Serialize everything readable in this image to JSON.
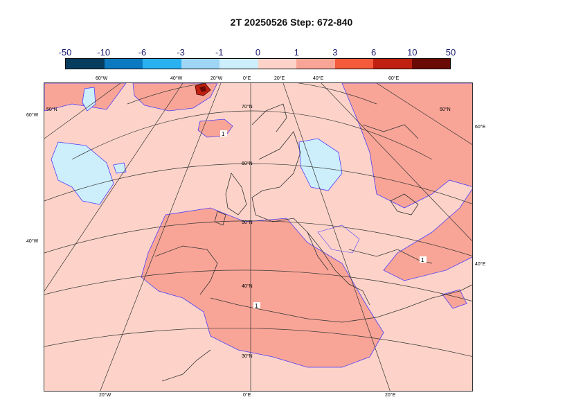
{
  "title": "2T 20250526 Step: 672-840",
  "legend": {
    "ticks": [
      "-50",
      "-10",
      "-6",
      "-3",
      "-1",
      "0",
      "1",
      "3",
      "6",
      "10",
      "50"
    ],
    "colors": [
      "#063d5e",
      "#0c7ac0",
      "#2ab1f0",
      "#9fd6f5",
      "#cdeefb",
      "#fdd3c9",
      "#f8a597",
      "#f55a3b",
      "#c0200f",
      "#6b0a04"
    ]
  },
  "map": {
    "top_lon_labels": [
      "60°W",
      "40°W",
      "20°W",
      "0°E",
      "20°E",
      "40°E",
      "60°E"
    ],
    "bottom_lon_labels": [
      "20°W",
      "0°E",
      "20°E"
    ],
    "left_labels": [
      "60°W",
      "40°W"
    ],
    "right_labels": [
      "60°E",
      "40°E"
    ],
    "lat_labels": [
      "70°N",
      "60°N",
      "50°N",
      "40°N",
      "30°N"
    ],
    "corner_lat_labels": [
      "50°N",
      "50°N"
    ],
    "contour_labels": [
      "1",
      "1",
      "1"
    ]
  }
}
